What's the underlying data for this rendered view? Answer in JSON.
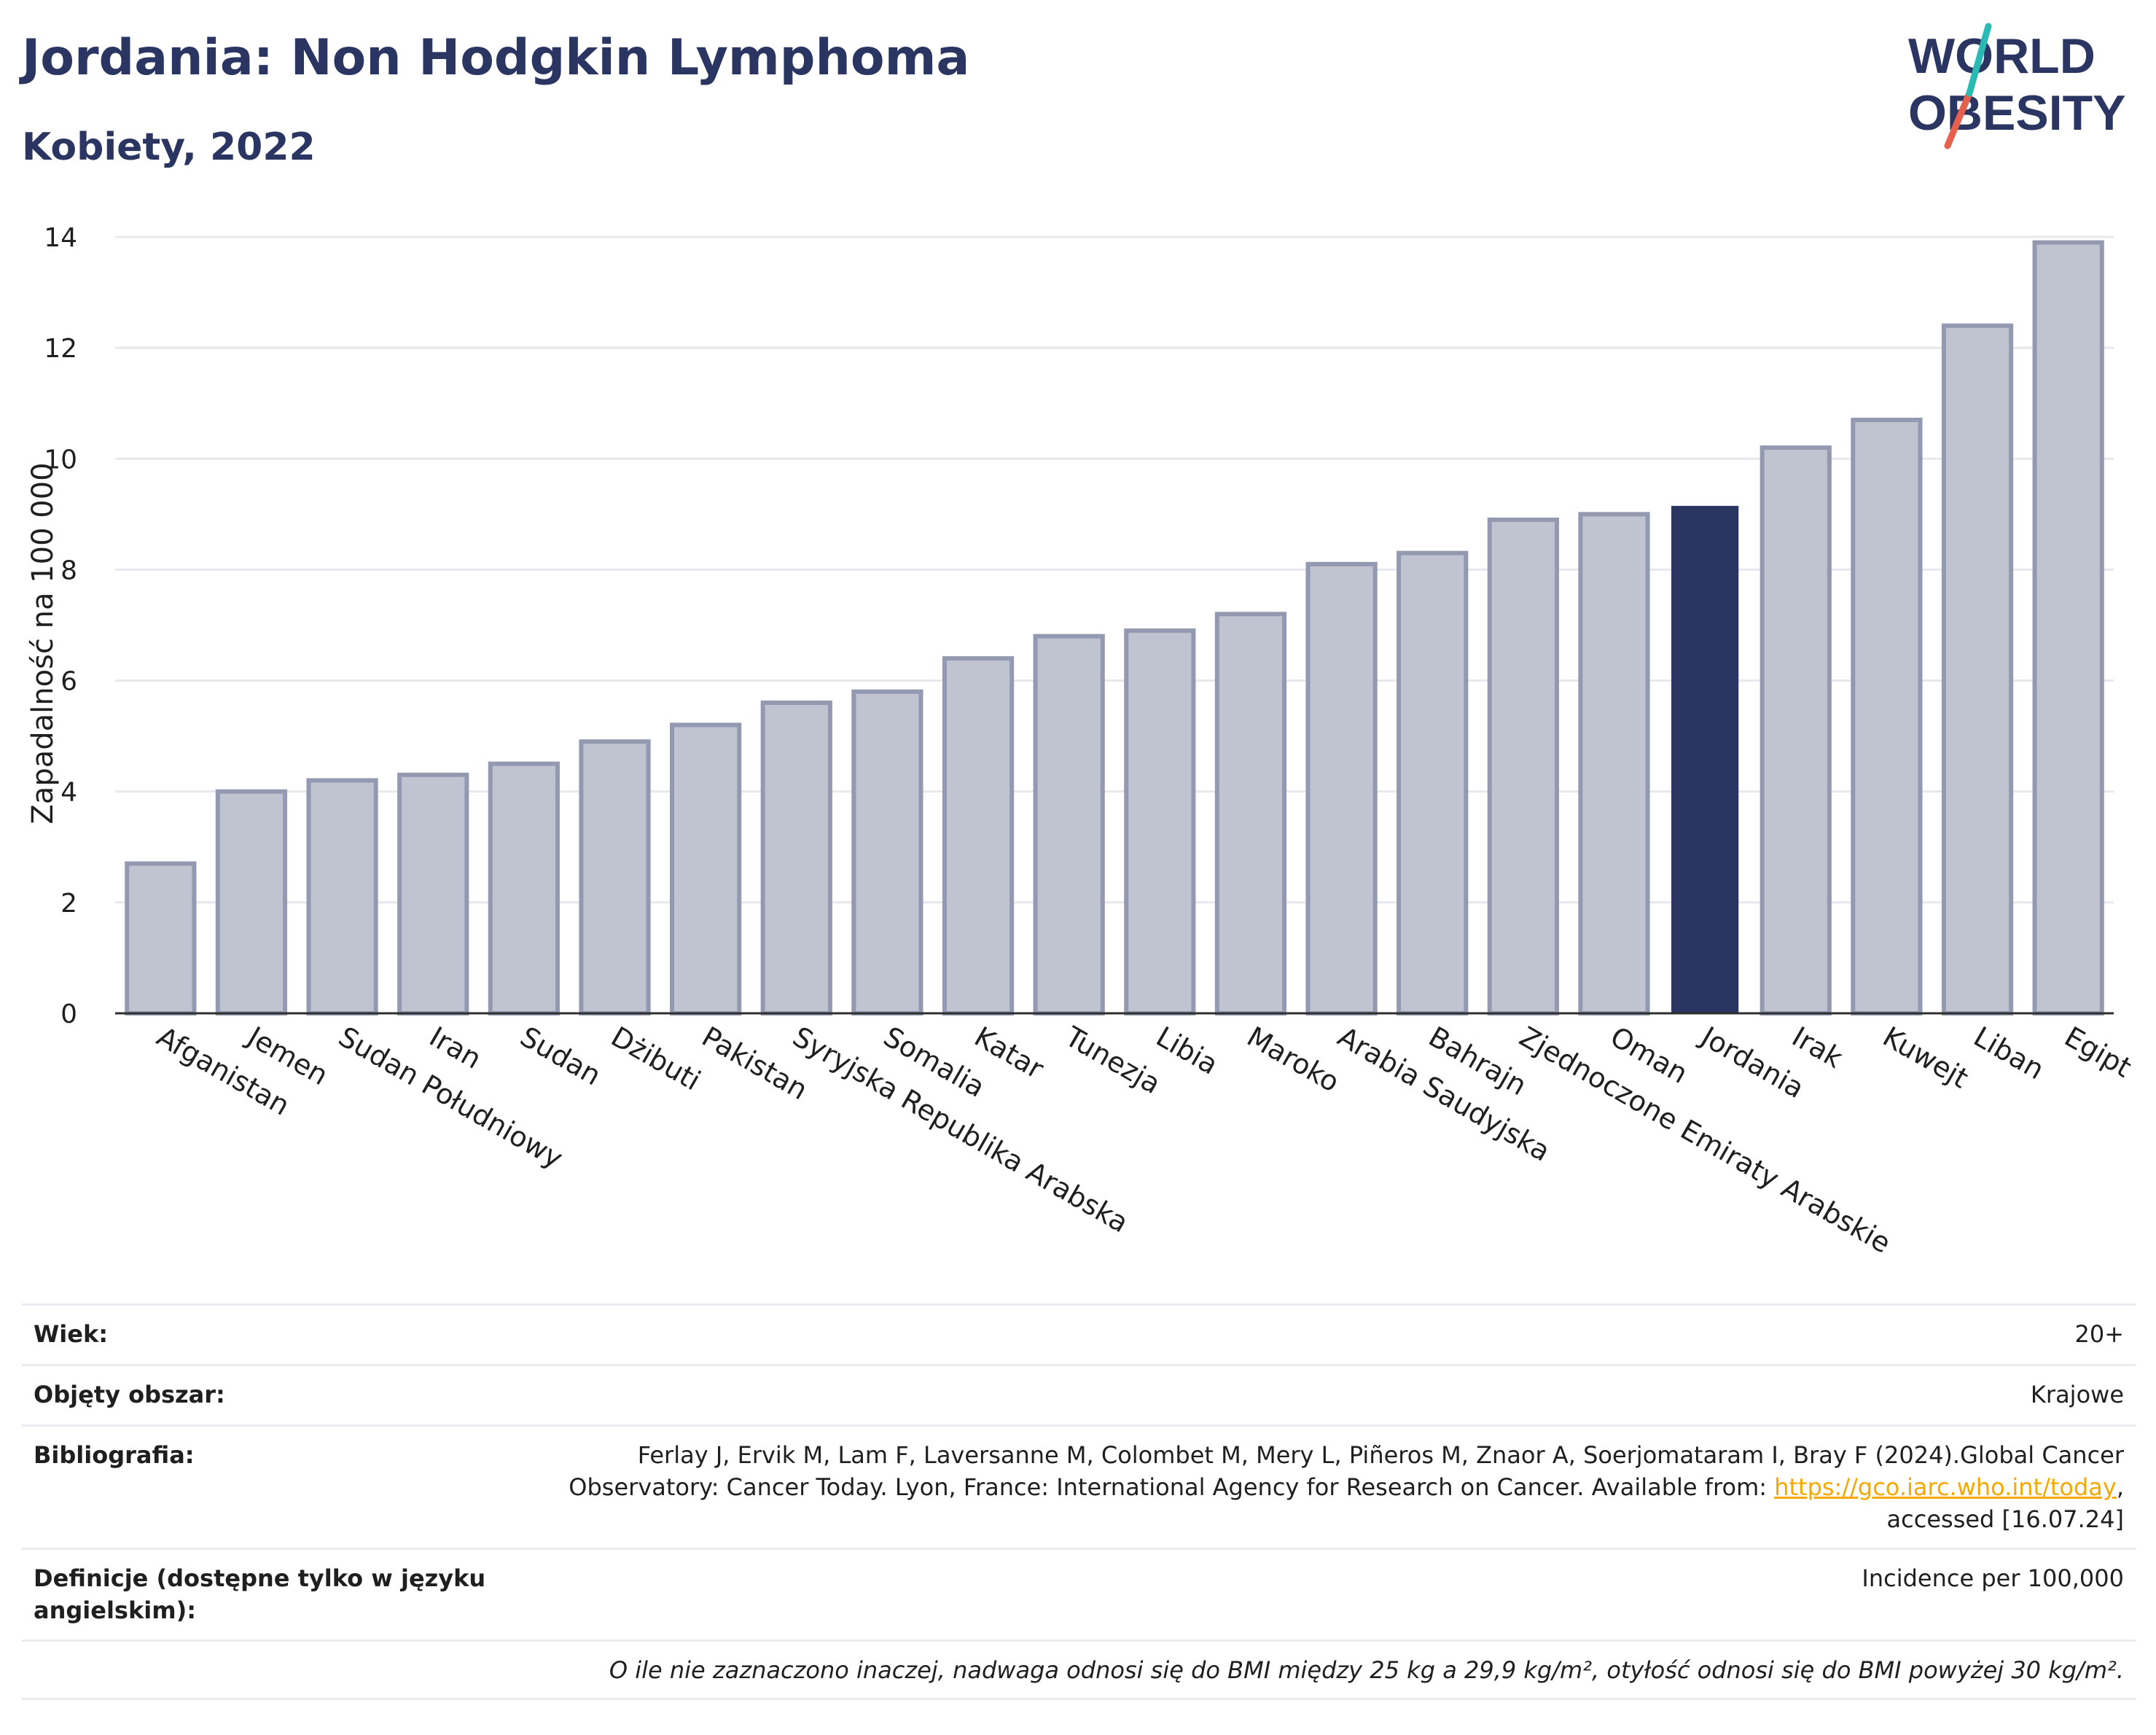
{
  "header": {
    "title": "Jordania: Non Hodgkin Lymphoma",
    "subtitle": "Kobiety, 2022"
  },
  "logo": {
    "line1": "WORLD",
    "line2": "OBESITY",
    "colors": {
      "text": "#2b3561",
      "slash_teal": "#2bb9b3",
      "slash_red": "#e5604d"
    }
  },
  "chart_data": {
    "type": "bar",
    "ylabel": "Zapadalność na 100 000",
    "xlabel": "",
    "ylim": [
      0,
      14
    ],
    "yticks": [
      0,
      2,
      4,
      6,
      8,
      10,
      12,
      14
    ],
    "grid": true,
    "categories": [
      "Afganistan",
      "Jemen",
      "Sudan Południowy",
      "Iran",
      "Sudan",
      "Dżibuti",
      "Pakistan",
      "Syryjska Republika Arabska",
      "Somalia",
      "Katar",
      "Tunezja",
      "Libia",
      "Maroko",
      "Arabia Saudyjska",
      "Bahrajn",
      "Zjednoczone Emiraty Arabskie",
      "Oman",
      "Jordania",
      "Irak",
      "Kuwejt",
      "Liban",
      "Egipt"
    ],
    "values": [
      2.7,
      4.0,
      4.2,
      4.3,
      4.5,
      4.9,
      5.2,
      5.6,
      5.8,
      6.4,
      6.8,
      6.9,
      7.2,
      8.1,
      8.3,
      8.9,
      9.0,
      9.15,
      10.2,
      10.7,
      12.4,
      13.9
    ],
    "highlight": "Jordania",
    "colors": {
      "bar": "#c0c3d0",
      "bar_border": "#9499b2",
      "highlight": "#2b3561",
      "grid": "#e6e8ee",
      "axis": "#2f2f2f"
    }
  },
  "footer": {
    "rows": [
      {
        "label": "Wiek:",
        "value": "20+"
      },
      {
        "label": "Objęty obszar:",
        "value": "Krajowe"
      },
      {
        "label": "Bibliografia:",
        "value_lines": [
          "Ferlay J, Ervik M, Lam F, Laversanne M, Colombet M, Mery L, Piñeros M, Znaor A, Soerjomataram I, Bray F (2024).Global Cancer",
          "Observatory: Cancer Today. Lyon, France: International Agency for Research on Cancer. Available from: ",
          "https://gco.iarc.who.int/today",
          ",",
          "accessed [16.07.24]"
        ]
      },
      {
        "label": "Definicje (dostępne tylko w języku angielskim):",
        "value": "Incidence per 100,000"
      }
    ],
    "note": "O ile nie zaznaczono inaczej, nadwaga odnosi się do BMI między 25 kg a 29,9 kg/m², otyłość odnosi się do BMI powyżej 30 kg/m²."
  }
}
